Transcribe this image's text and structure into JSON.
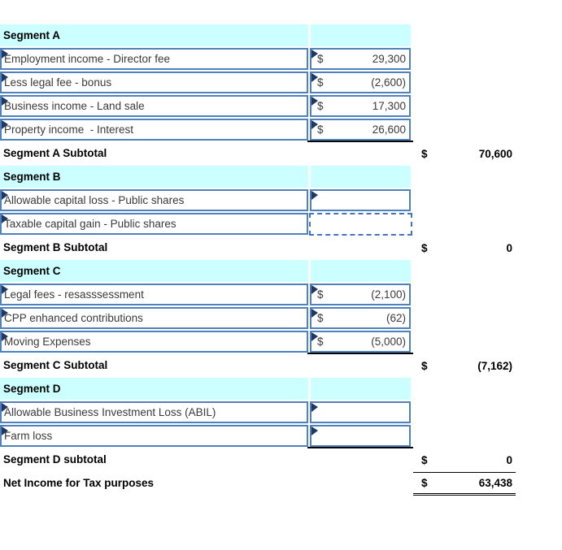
{
  "colors": {
    "header_bg": "#CCFFFF",
    "cell_border": "#4F81BD",
    "dotted_border": "#4472C4",
    "marker": "#1F3864",
    "sum_line": "#000000",
    "text": "#3A3A3A",
    "bold_text": "#000000"
  },
  "segments": [
    {
      "header": "Segment A",
      "items": [
        {
          "label": "Employment income - Director fee",
          "currency": "$",
          "value": "29,300"
        },
        {
          "label": "Less legal fee - bonus",
          "currency": "$",
          "value": "(2,600)"
        },
        {
          "label": "Business income - Land sale",
          "currency": "$",
          "value": "17,300"
        },
        {
          "label": "Property income  - Interest",
          "currency": "$",
          "value": "26,600"
        }
      ],
      "subtotal": {
        "label": "Segment A Subtotal",
        "currency": "$",
        "value": "70,600"
      }
    },
    {
      "header": "Segment B",
      "items": [
        {
          "label": "Allowable capital loss - Public shares",
          "currency": "",
          "value": ""
        },
        {
          "label": "Taxable capital gain - Public shares",
          "currency": "",
          "value": ""
        }
      ],
      "subtotal": {
        "label": "Segment B Subtotal",
        "currency": "$",
        "value": "0"
      }
    },
    {
      "header": "Segment C",
      "items": [
        {
          "label": "Legal fees - resasssessment",
          "currency": "$",
          "value": "(2,100)"
        },
        {
          "label": "CPP enhanced contributions",
          "currency": "$",
          "value": "(62)"
        },
        {
          "label": "Moving Expenses",
          "currency": "$",
          "value": "(5,000)"
        }
      ],
      "subtotal": {
        "label": "Segment C Subtotal",
        "currency": "$",
        "value": "(7,162)"
      }
    },
    {
      "header": "Segment D",
      "items": [
        {
          "label": "Allowable Business Investment Loss (ABIL)",
          "currency": "",
          "value": ""
        },
        {
          "label": "Farm loss",
          "currency": "",
          "value": ""
        }
      ],
      "subtotal": {
        "label": "Segment D subtotal",
        "currency": "$",
        "value": "0"
      }
    }
  ],
  "total": {
    "label": "Net Income for Tax purposes",
    "currency": "$",
    "value": "63,438"
  }
}
